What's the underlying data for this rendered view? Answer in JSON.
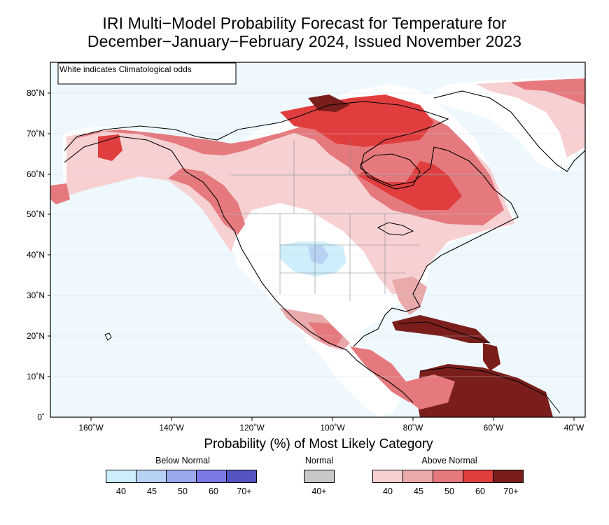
{
  "title_line1": "IRI Multi−Model Probability Forecast for Temperature for",
  "title_line2": "December−January−February 2024, Issued November 2023",
  "note": "White indicates Climatological odds",
  "lat_labels": [
    "80˚N",
    "70˚N",
    "60˚N",
    "50˚N",
    "40˚N",
    "30˚N",
    "20˚N",
    "10˚N",
    "0˚"
  ],
  "lon_labels": [
    "160˚W",
    "140˚W",
    "120˚W",
    "100˚W",
    "80˚W",
    "60˚W",
    "40˚W"
  ],
  "legend": {
    "title": "Probability (%) of Most Likely Category",
    "below": {
      "label": "Below Normal",
      "ticks": [
        "40",
        "45",
        "50",
        "60",
        "70+"
      ],
      "colors": [
        "#cdeefa",
        "#b8d2f5",
        "#9aa8ee",
        "#7b79e3",
        "#5454c2"
      ]
    },
    "normal": {
      "label": "Normal",
      "ticks": [
        "40+"
      ],
      "colors": [
        "#c8c8c8"
      ]
    },
    "above": {
      "label": "Above Normal",
      "ticks": [
        "40",
        "45",
        "50",
        "60",
        "70+"
      ],
      "colors": [
        "#f7d0d2",
        "#eaa9ab",
        "#e5797e",
        "#e03e3e",
        "#7a1e1b"
      ]
    }
  },
  "colors": {
    "ocean": "#eef8fd",
    "land_clim": "#ffffff"
  }
}
